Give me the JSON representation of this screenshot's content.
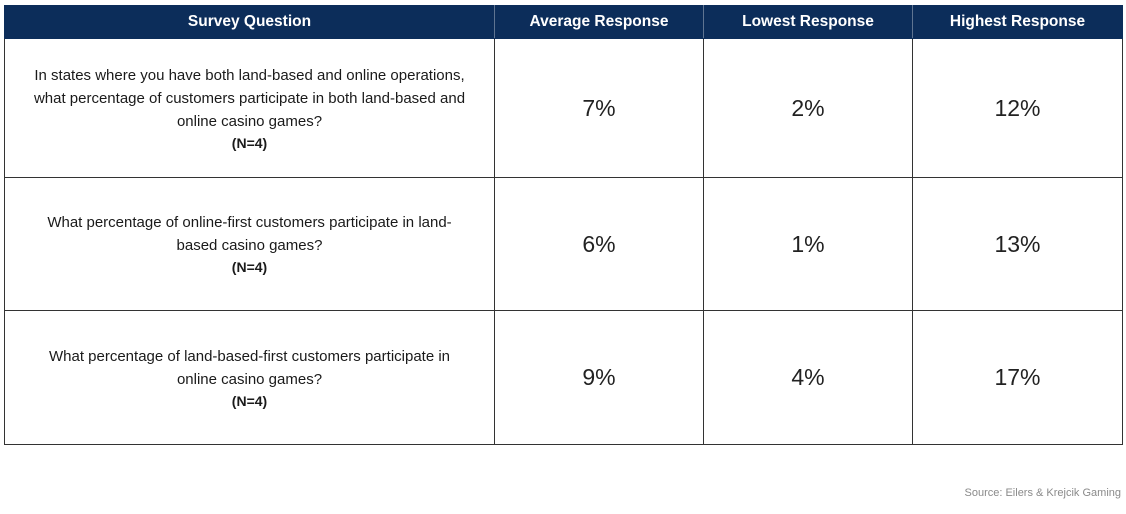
{
  "chart_data": {
    "type": "table",
    "columns": [
      "Survey Question",
      "Average Response",
      "Lowest Response",
      "Highest Response"
    ],
    "rows": [
      {
        "question": "In states where you have both land-based and online operations, what percentage of customers participate in both land-based and online casino games?",
        "n": "(N=4)",
        "average": "7%",
        "lowest": "2%",
        "highest": "12%"
      },
      {
        "question": "What percentage of online-first customers participate in land-based casino games?",
        "n": "(N=4)",
        "average": "6%",
        "lowest": "1%",
        "highest": "13%"
      },
      {
        "question": "What percentage of land-based-first customers participate in online casino games?",
        "n": "(N=4)",
        "average": "9%",
        "lowest": "4%",
        "highest": "17%"
      }
    ]
  },
  "source": "Source: Eilers & Krejcik Gaming",
  "colors": {
    "header_background": "#0c2d5a",
    "header_text": "#ffffff",
    "border": "#333333"
  }
}
